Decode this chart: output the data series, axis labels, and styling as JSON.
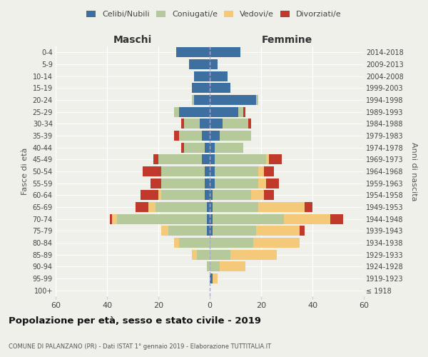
{
  "age_groups": [
    "100+",
    "95-99",
    "90-94",
    "85-89",
    "80-84",
    "75-79",
    "70-74",
    "65-69",
    "60-64",
    "55-59",
    "50-54",
    "45-49",
    "40-44",
    "35-39",
    "30-34",
    "25-29",
    "20-24",
    "15-19",
    "10-14",
    "5-9",
    "0-4"
  ],
  "birth_years": [
    "≤ 1918",
    "1919-1923",
    "1924-1928",
    "1929-1933",
    "1934-1938",
    "1939-1943",
    "1944-1948",
    "1949-1953",
    "1954-1958",
    "1959-1963",
    "1964-1968",
    "1969-1973",
    "1974-1978",
    "1979-1983",
    "1984-1988",
    "1989-1993",
    "1994-1998",
    "1999-2003",
    "2004-2008",
    "2009-2013",
    "2014-2018"
  ],
  "colors": {
    "celibi": "#3d6fa0",
    "coniugati": "#b5c99a",
    "vedovi": "#f5c97a",
    "divorziati": "#c0392b"
  },
  "maschi": {
    "celibi": [
      0,
      0,
      0,
      0,
      0,
      1,
      1,
      1,
      2,
      2,
      2,
      3,
      2,
      3,
      4,
      12,
      6,
      7,
      6,
      8,
      13
    ],
    "coniugati": [
      0,
      0,
      1,
      5,
      12,
      15,
      35,
      20,
      17,
      17,
      17,
      17,
      8,
      9,
      6,
      2,
      1,
      0,
      0,
      0,
      0
    ],
    "vedovi": [
      0,
      0,
      0,
      2,
      2,
      3,
      2,
      3,
      1,
      0,
      0,
      0,
      0,
      0,
      0,
      0,
      0,
      0,
      0,
      0,
      0
    ],
    "divorziati": [
      0,
      0,
      0,
      0,
      0,
      0,
      1,
      5,
      7,
      4,
      7,
      2,
      1,
      2,
      1,
      0,
      0,
      0,
      0,
      0,
      0
    ]
  },
  "femmine": {
    "celibi": [
      0,
      1,
      0,
      0,
      0,
      1,
      1,
      1,
      1,
      2,
      2,
      2,
      2,
      4,
      5,
      11,
      18,
      8,
      7,
      3,
      12
    ],
    "coniugati": [
      0,
      0,
      4,
      8,
      17,
      17,
      28,
      18,
      15,
      17,
      17,
      20,
      11,
      12,
      10,
      2,
      1,
      0,
      0,
      0,
      0
    ],
    "vedovi": [
      0,
      2,
      10,
      18,
      18,
      17,
      18,
      18,
      5,
      3,
      2,
      1,
      0,
      0,
      0,
      0,
      0,
      0,
      0,
      0,
      0
    ],
    "divorziati": [
      0,
      0,
      0,
      0,
      0,
      2,
      5,
      3,
      4,
      5,
      4,
      5,
      0,
      0,
      1,
      1,
      0,
      0,
      0,
      0,
      0
    ]
  },
  "xlim": 60,
  "title": "Popolazione per età, sesso e stato civile - 2019",
  "subtitle": "COMUNE DI PALANZANO (PR) - Dati ISTAT 1° gennaio 2019 - Elaborazione TUTTITALIA.IT",
  "ylabel_left": "Fasce di età",
  "ylabel_right": "Anni di nascita",
  "xlabel_left": "Maschi",
  "xlabel_right": "Femmine",
  "legend_labels": [
    "Celibi/Nubili",
    "Coniugati/e",
    "Vedovi/e",
    "Divorziati/e"
  ],
  "background_color": "#f0f0eb"
}
